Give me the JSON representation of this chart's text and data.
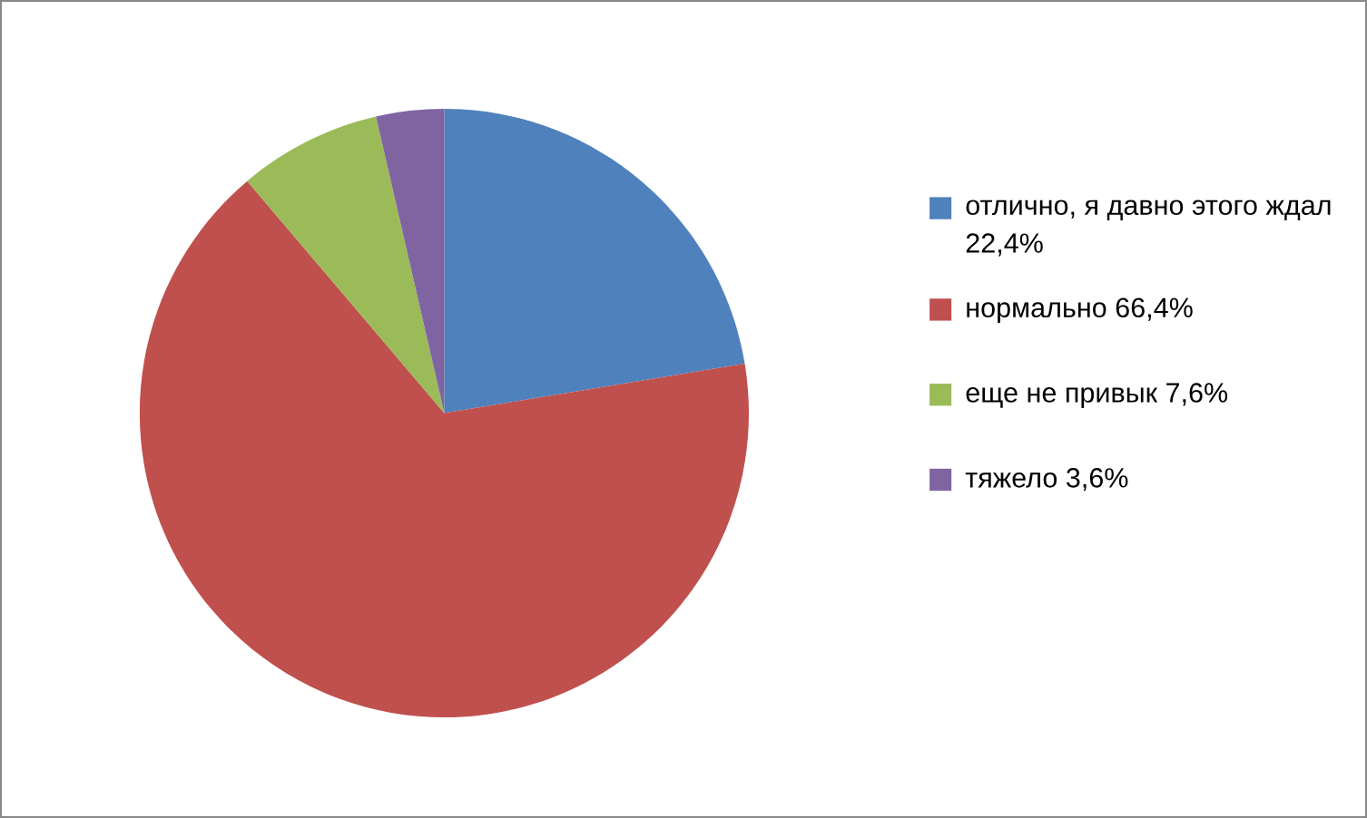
{
  "chart_data": {
    "type": "pie",
    "categories": [
      "отлично, я давно этого ждал 22,4%",
      "нормально 66,4%",
      "еще не привык 7,6%",
      "тяжело 3,6%"
    ],
    "values": [
      22.4,
      66.4,
      7.6,
      3.6
    ],
    "colors": [
      "#4f81bd",
      "#c0504d",
      "#9bbb59",
      "#8064a2"
    ],
    "legend": "right"
  }
}
